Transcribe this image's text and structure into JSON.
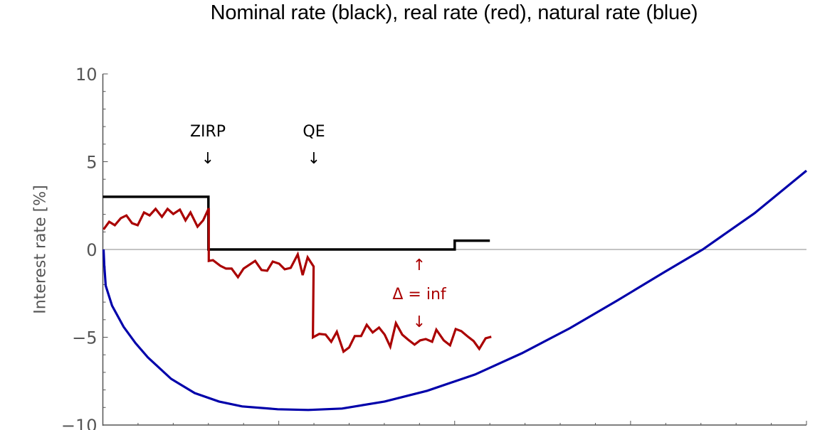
{
  "chart_data": {
    "type": "line",
    "title": "Nominal rate (black), real rate (red), natural rate (blue)",
    "xlabel": "",
    "ylabel": "Interest rate [%]",
    "xlim": [
      0,
      20
    ],
    "ylim": [
      -10,
      10
    ],
    "yticks": [
      -10,
      -5,
      0,
      5,
      10
    ],
    "ytick_labels": [
      "−10",
      "−5",
      "0",
      "5",
      "10"
    ],
    "x_minor_ticks": [
      0,
      1,
      2,
      3,
      4,
      5,
      6,
      7,
      8,
      9,
      10,
      11,
      12,
      13,
      14,
      15,
      16,
      17,
      18,
      19,
      20
    ],
    "x_tick_labels_visible": false,
    "grid": false,
    "zero_line": true,
    "series": [
      {
        "name": "Nominal rate",
        "color": "#000000",
        "points": [
          [
            0,
            3.0
          ],
          [
            3.0,
            3.0
          ],
          [
            3.0,
            0.0
          ],
          [
            10.0,
            0.0
          ],
          [
            10.0,
            0.5
          ],
          [
            11.0,
            0.5
          ]
        ]
      },
      {
        "name": "Real rate",
        "color": "#aa0000",
        "points": [
          [
            0.02,
            1.14
          ],
          [
            0.18,
            1.58
          ],
          [
            0.34,
            1.38
          ],
          [
            0.51,
            1.78
          ],
          [
            0.67,
            1.94
          ],
          [
            0.83,
            1.5
          ],
          [
            0.99,
            1.38
          ],
          [
            1.17,
            2.11
          ],
          [
            1.33,
            1.94
          ],
          [
            1.5,
            2.31
          ],
          [
            1.68,
            1.86
          ],
          [
            1.84,
            2.31
          ],
          [
            2.0,
            2.02
          ],
          [
            2.19,
            2.27
          ],
          [
            2.35,
            1.66
          ],
          [
            2.49,
            2.11
          ],
          [
            2.69,
            1.3
          ],
          [
            2.85,
            1.66
          ],
          [
            3.01,
            2.35
          ],
          [
            3.01,
            -0.65
          ],
          [
            3.13,
            -0.61
          ],
          [
            3.34,
            -0.93
          ],
          [
            3.5,
            -1.09
          ],
          [
            3.66,
            -1.09
          ],
          [
            3.84,
            -1.58
          ],
          [
            4.0,
            -1.09
          ],
          [
            4.33,
            -0.65
          ],
          [
            4.51,
            -1.17
          ],
          [
            4.67,
            -1.21
          ],
          [
            4.83,
            -0.69
          ],
          [
            5.01,
            -0.81
          ],
          [
            5.17,
            -1.13
          ],
          [
            5.34,
            -1.05
          ],
          [
            5.54,
            -0.28
          ],
          [
            5.68,
            -1.46
          ],
          [
            5.82,
            -0.45
          ],
          [
            5.99,
            -0.97
          ],
          [
            5.97,
            -5.01
          ],
          [
            6.15,
            -4.81
          ],
          [
            6.33,
            -4.85
          ],
          [
            6.49,
            -5.26
          ],
          [
            6.65,
            -4.69
          ],
          [
            6.84,
            -5.82
          ],
          [
            7.0,
            -5.58
          ],
          [
            7.16,
            -4.93
          ],
          [
            7.34,
            -4.93
          ],
          [
            7.5,
            -4.29
          ],
          [
            7.67,
            -4.73
          ],
          [
            7.85,
            -4.45
          ],
          [
            8.01,
            -4.85
          ],
          [
            8.17,
            -5.54
          ],
          [
            8.33,
            -4.2
          ],
          [
            8.51,
            -4.85
          ],
          [
            8.68,
            -5.14
          ],
          [
            8.86,
            -5.42
          ],
          [
            9.02,
            -5.18
          ],
          [
            9.18,
            -5.1
          ],
          [
            9.36,
            -5.26
          ],
          [
            9.48,
            -4.57
          ],
          [
            9.69,
            -5.18
          ],
          [
            9.87,
            -5.46
          ],
          [
            10.03,
            -4.53
          ],
          [
            10.19,
            -4.65
          ],
          [
            10.38,
            -4.97
          ],
          [
            10.54,
            -5.22
          ],
          [
            10.7,
            -5.66
          ],
          [
            10.88,
            -5.06
          ],
          [
            11.04,
            -4.97
          ]
        ]
      },
      {
        "name": "Natural rate",
        "color": "#0000aa",
        "points": [
          [
            0.02,
            0.0
          ],
          [
            0.04,
            -0.89
          ],
          [
            0.08,
            -2.06
          ],
          [
            0.26,
            -3.2
          ],
          [
            0.59,
            -4.41
          ],
          [
            0.93,
            -5.34
          ],
          [
            1.28,
            -6.15
          ],
          [
            1.94,
            -7.37
          ],
          [
            2.61,
            -8.18
          ],
          [
            3.3,
            -8.66
          ],
          [
            3.96,
            -8.94
          ],
          [
            4.97,
            -9.1
          ],
          [
            5.84,
            -9.14
          ],
          [
            6.8,
            -9.06
          ],
          [
            8.01,
            -8.66
          ],
          [
            9.22,
            -8.05
          ],
          [
            10.58,
            -7.12
          ],
          [
            11.91,
            -5.91
          ],
          [
            13.27,
            -4.49
          ],
          [
            14.62,
            -2.91
          ],
          [
            15.96,
            -1.29
          ],
          [
            17.05,
            0.0
          ],
          [
            18.52,
            2.06
          ],
          [
            20.0,
            4.49
          ]
        ]
      }
    ],
    "annotations": [
      {
        "text": "ZIRP",
        "arrow": "↓",
        "x": 3.0,
        "y": 6.8,
        "color": "#000000"
      },
      {
        "text": "QE",
        "arrow": "↓",
        "x": 6.0,
        "y": 6.8,
        "color": "#000000"
      },
      {
        "text": "Δ = inf",
        "arrow_up": "↑",
        "arrow_down": "↓",
        "x": 9.0,
        "y": -2.5,
        "color": "#aa0000"
      }
    ]
  },
  "labels": {
    "title": "Nominal rate (black), real rate (red), natural rate (blue)",
    "ylabel": "Interest rate [%]",
    "zirp": "ZIRP",
    "qe": "QE",
    "down_arrow": "↓",
    "up_arrow": "↑",
    "delta": "Δ = inf"
  }
}
